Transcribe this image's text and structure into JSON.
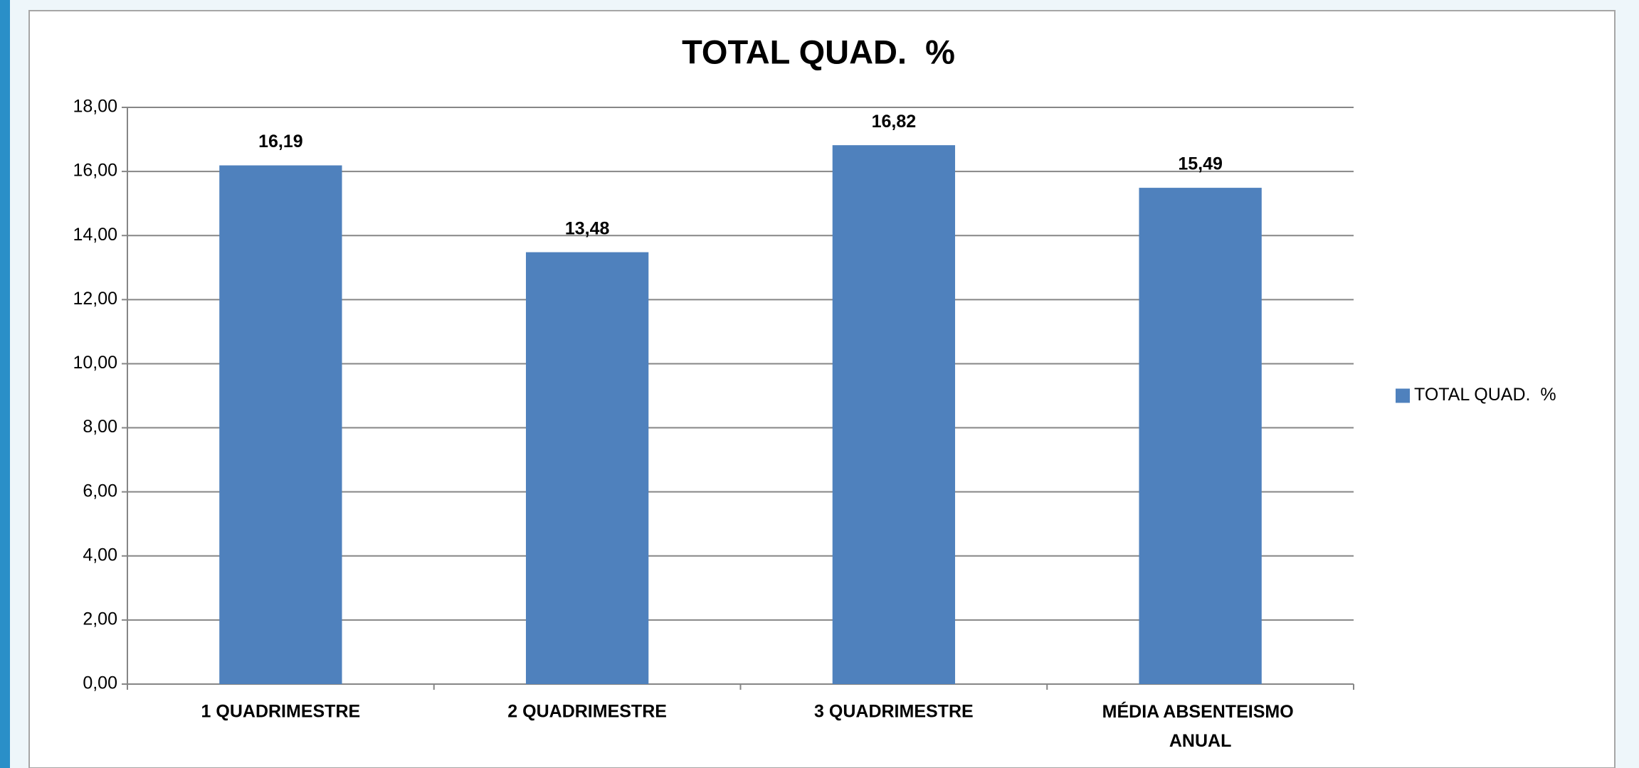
{
  "chart_data": {
    "type": "bar",
    "title": "TOTAL QUAD.  %",
    "categories": [
      "1 QUADRIMESTRE",
      "2 QUADRIMESTRE",
      "3 QUADRIMESTRE",
      "MÉDIA ABSENTEISMO ANUAL"
    ],
    "series": [
      {
        "name": "TOTAL QUAD.  %",
        "color": "#4f81bd",
        "values": [
          16.19,
          13.48,
          16.82,
          15.49
        ],
        "value_labels": [
          "16,19",
          "13,48",
          "16,82",
          "15,49"
        ]
      }
    ],
    "ylim": [
      0,
      18
    ],
    "yticks": [
      {
        "value": 0,
        "label": "0,00"
      },
      {
        "value": 2,
        "label": "2,00"
      },
      {
        "value": 4,
        "label": "4,00"
      },
      {
        "value": 6,
        "label": "6,00"
      },
      {
        "value": 8,
        "label": "8,00"
      },
      {
        "value": 10,
        "label": "10,00"
      },
      {
        "value": 12,
        "label": "12,00"
      },
      {
        "value": 14,
        "label": "14,00"
      },
      {
        "value": 16,
        "label": "16,00"
      },
      {
        "value": 18,
        "label": "18,00"
      }
    ],
    "grid": true,
    "legend": "right"
  }
}
